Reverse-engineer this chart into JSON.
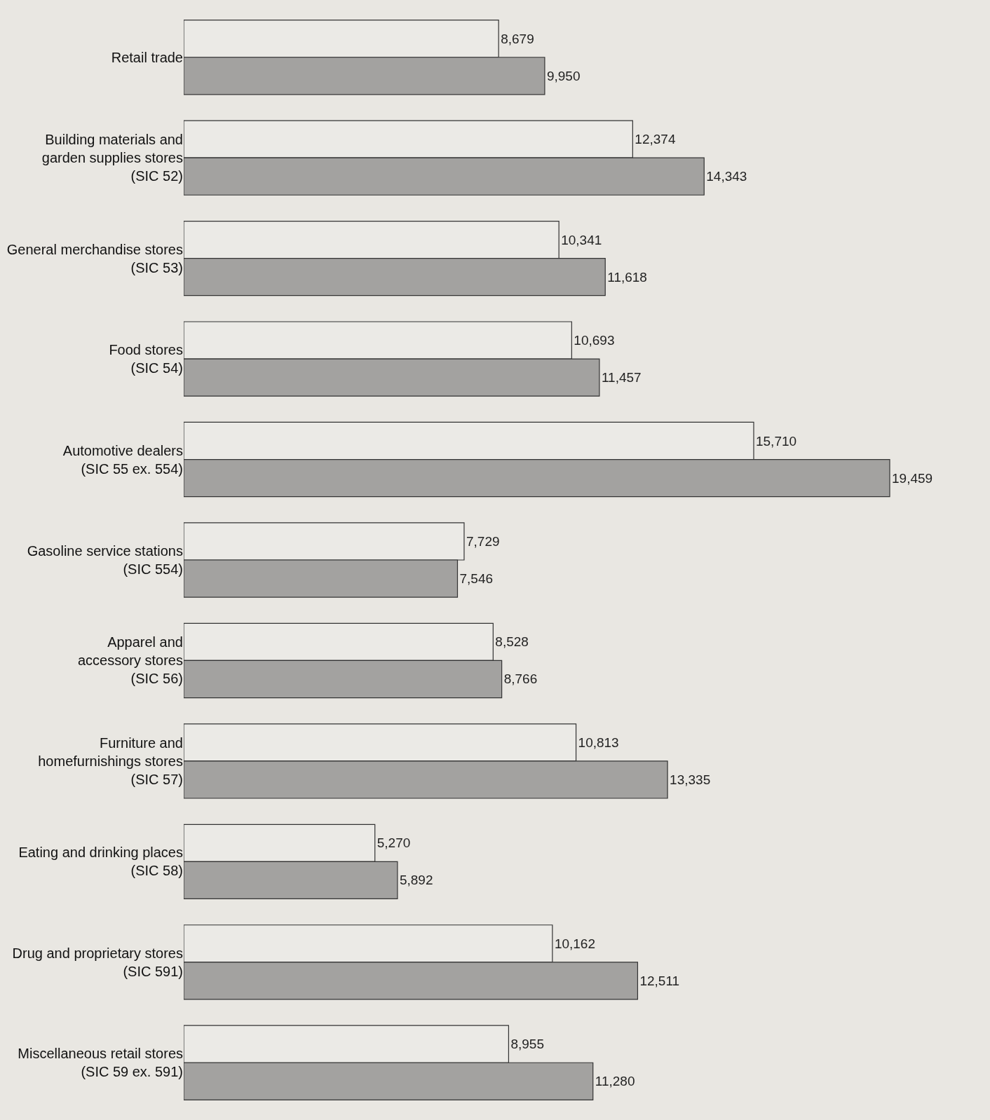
{
  "chart_data": {
    "type": "bar",
    "orientation": "horizontal",
    "categories": [
      "Retail trade",
      "Building materials and\ngarden supplies stores\n(SIC 52)",
      "General merchandise stores\n(SIC 53)",
      "Food stores\n(SIC 54)",
      "Automotive dealers\n(SIC 55 ex. 554)",
      "Gasoline service stations\n(SIC 554)",
      "Apparel and\naccessory stores\n(SIC 56)",
      "Furniture and\nhomefurnishings stores\n(SIC 57)",
      "Eating and drinking places\n(SIC 58)",
      "Drug and proprietary stores\n(SIC 591)",
      "Miscellaneous retail stores\n(SIC 59 ex. 591)"
    ],
    "series": [
      {
        "color": "#ebeae6",
        "values": [
          8679,
          12374,
          10341,
          10693,
          15710,
          7729,
          8528,
          10813,
          5270,
          10162,
          8955
        ],
        "value_labels": [
          "8,679",
          "12,374",
          "10,341",
          "10,693",
          "15,710",
          "7,729",
          "8,528",
          "10,813",
          "5,270",
          "10,162",
          "8,955"
        ]
      },
      {
        "color": "#a3a2a0",
        "values": [
          9950,
          14343,
          11618,
          11457,
          19459,
          7546,
          8766,
          13335,
          5892,
          12511,
          11280
        ],
        "value_labels": [
          "9,950",
          "14,343",
          "11,618",
          "11,457",
          "19,459",
          "7,546",
          "8,766",
          "13,335",
          "5,892",
          "12,511",
          "11,280"
        ]
      }
    ]
  }
}
